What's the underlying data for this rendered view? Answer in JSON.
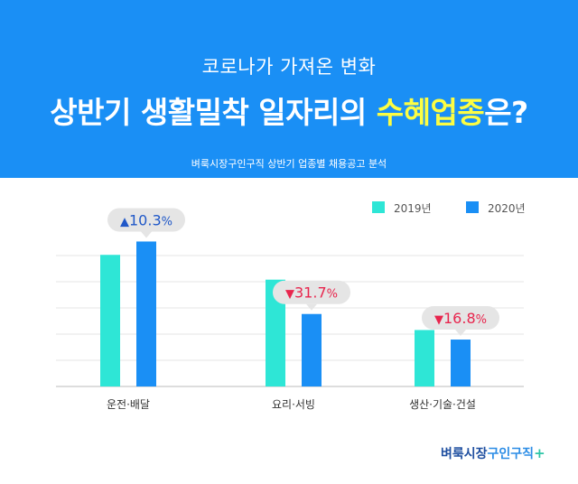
{
  "header": {
    "subtitle": "코로나가 가져온 변화",
    "title_part1": "상반기 생활밀착 일자리의 ",
    "title_highlight": "수혜업종",
    "title_part2": "은?",
    "source": "벼룩시장구인구직 상반기 업종별 채용공고 분석"
  },
  "colors": {
    "header_bg": "#1a8ff5",
    "highlight": "#fcfd43",
    "series_2019": "#2ee6d6",
    "series_2020": "#1a8ff5",
    "up": "#2058c8",
    "down": "#e8264e"
  },
  "chart_data": {
    "type": "bar",
    "categories": [
      "운전·배달",
      "요리·서빙",
      "생산·기술·건설"
    ],
    "series": [
      {
        "name": "2019년",
        "values": [
          6.9,
          5.6,
          2.96
        ]
      },
      {
        "name": "2020년",
        "values": [
          7.6,
          3.8,
          2.46
        ]
      }
    ],
    "changes": [
      {
        "direction": "up",
        "arrow": "▲",
        "value": "10.3",
        "unit": "%"
      },
      {
        "direction": "down",
        "arrow": "▼",
        "value": "31.7",
        "unit": "%"
      },
      {
        "direction": "down",
        "arrow": "▼",
        "value": "16.8",
        "unit": "%"
      }
    ],
    "ylim": [
      0,
      8
    ],
    "grid": true,
    "legend_position": "top-right",
    "title": "",
    "xlabel": "",
    "ylabel": ""
  },
  "logo": {
    "part1": "벼룩시장",
    "part2": "구인구직",
    "plus": "+"
  }
}
